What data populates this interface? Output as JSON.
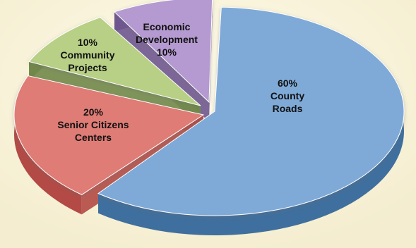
{
  "chart_data": {
    "type": "pie",
    "style": "3d-exploded",
    "title": "",
    "slices": [
      {
        "name": "County Roads",
        "value": 60,
        "label_lines": [
          "60%",
          "County",
          "Roads"
        ],
        "color": "#7faad8",
        "side_color": "#3f6f9e"
      },
      {
        "name": "Senior Citizens Centers",
        "value": 20,
        "label_lines": [
          "20%",
          "Senior Citizens",
          "Centers"
        ],
        "color": "#df7b76",
        "side_color": "#b34a45"
      },
      {
        "name": "Community Projects",
        "value": 10,
        "label_lines": [
          "10%",
          "Community",
          "Projects"
        ],
        "color": "#b8cf86",
        "side_color": "#71884a"
      },
      {
        "name": "Economic Development",
        "value": 10,
        "label_lines": [
          "Economic",
          "Development",
          "10%"
        ],
        "color": "#b49ad0",
        "side_color": "#6f5690"
      }
    ]
  }
}
